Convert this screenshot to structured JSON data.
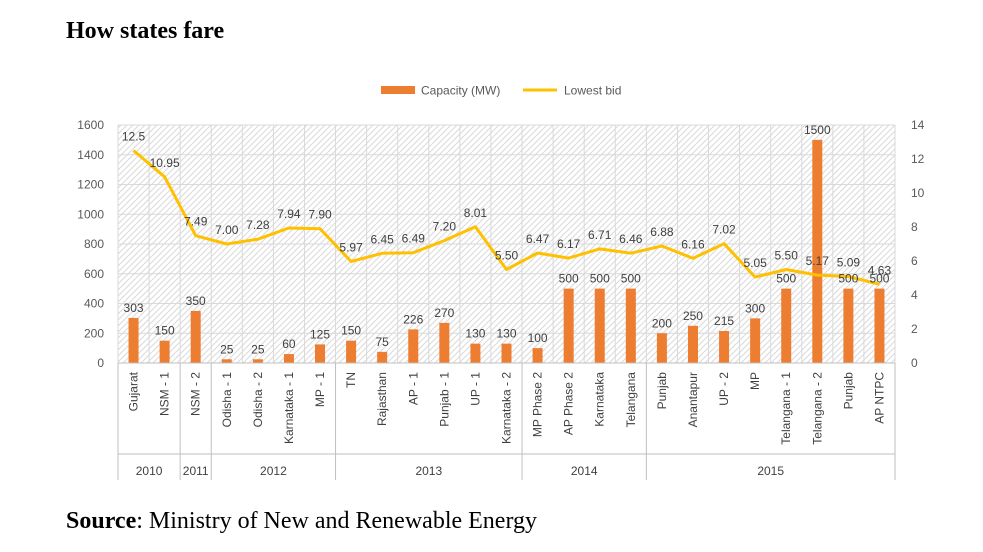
{
  "title": "How states fare",
  "source": {
    "label": "Source",
    "text": ": Ministry of New and Renewable Energy"
  },
  "chart_data": {
    "type": "bar",
    "title": "How states fare",
    "categories": [
      "Gujarat",
      "NSM - 1",
      "NSM - 2",
      "Odisha - 1",
      "Odisha - 2",
      "Karnataka - 1",
      "MP - 1",
      "TN",
      "Rajasthan",
      "AP - 1",
      "Punjab - 1",
      "UP - 1",
      "Karnataka - 2",
      "MP Phase 2",
      "AP Phase 2",
      "Karnataka",
      "Telangana",
      "Punjab",
      "Anantapur",
      "UP - 2",
      "MP",
      "Telangana - 1",
      "Telangana - 2",
      "Punjab",
      "AP NTPC"
    ],
    "years": [
      {
        "label": "2010",
        "count": 2
      },
      {
        "label": "2011",
        "count": 1
      },
      {
        "label": "2012",
        "count": 4
      },
      {
        "label": "2013",
        "count": 6
      },
      {
        "label": "2014",
        "count": 4
      },
      {
        "label": "2015",
        "count": 8
      }
    ],
    "series": [
      {
        "name": "Capacity (MW)",
        "type": "bar",
        "axis": "left",
        "color": "#ED7D31",
        "values": [
          303,
          150,
          350,
          25,
          25,
          60,
          125,
          150,
          75,
          226,
          270,
          130,
          130,
          100,
          500,
          500,
          500,
          200,
          250,
          215,
          300,
          500,
          1500,
          500,
          500
        ],
        "labels": [
          "303",
          "150",
          "350",
          "25",
          "25",
          "60",
          "125",
          "150",
          "75",
          "226",
          "270",
          "130",
          "130",
          "100",
          "500",
          "500",
          "500",
          "200",
          "250",
          "215",
          "300",
          "500",
          "1500",
          "500",
          "500"
        ]
      },
      {
        "name": "Lowest bid",
        "type": "line",
        "axis": "right",
        "color": "#FFC000",
        "values": [
          12.5,
          10.95,
          7.49,
          7.0,
          7.28,
          7.94,
          7.9,
          5.97,
          6.45,
          6.49,
          7.2,
          8.01,
          5.5,
          6.47,
          6.17,
          6.71,
          6.46,
          6.88,
          6.16,
          7.02,
          5.05,
          5.5,
          5.17,
          5.09,
          4.63
        ],
        "labels": [
          "12.5",
          "10.95",
          "7.49",
          "7.00",
          "7.28",
          "7.94",
          "7.90",
          "5.97",
          "6.45",
          "6.49",
          "7.20",
          "8.01",
          "5.50",
          "6.47",
          "6.17",
          "6.71",
          "6.46",
          "6.88",
          "6.16",
          "7.02",
          "5.05",
          "5.50",
          "5.17",
          "5.09",
          "4.63"
        ]
      }
    ],
    "y_left": {
      "min": 0,
      "max": 1600,
      "step": 200,
      "ticks": [
        "0",
        "200",
        "400",
        "600",
        "800",
        "1000",
        "1200",
        "1400",
        "1600"
      ]
    },
    "y_right": {
      "min": 0,
      "max": 14,
      "step": 2,
      "ticks": [
        "0",
        "2",
        "4",
        "6",
        "8",
        "10",
        "12",
        "14"
      ]
    },
    "legend": {
      "position": "top",
      "items": [
        "Capacity (MW)",
        "Lowest bid"
      ]
    },
    "grid": true
  }
}
